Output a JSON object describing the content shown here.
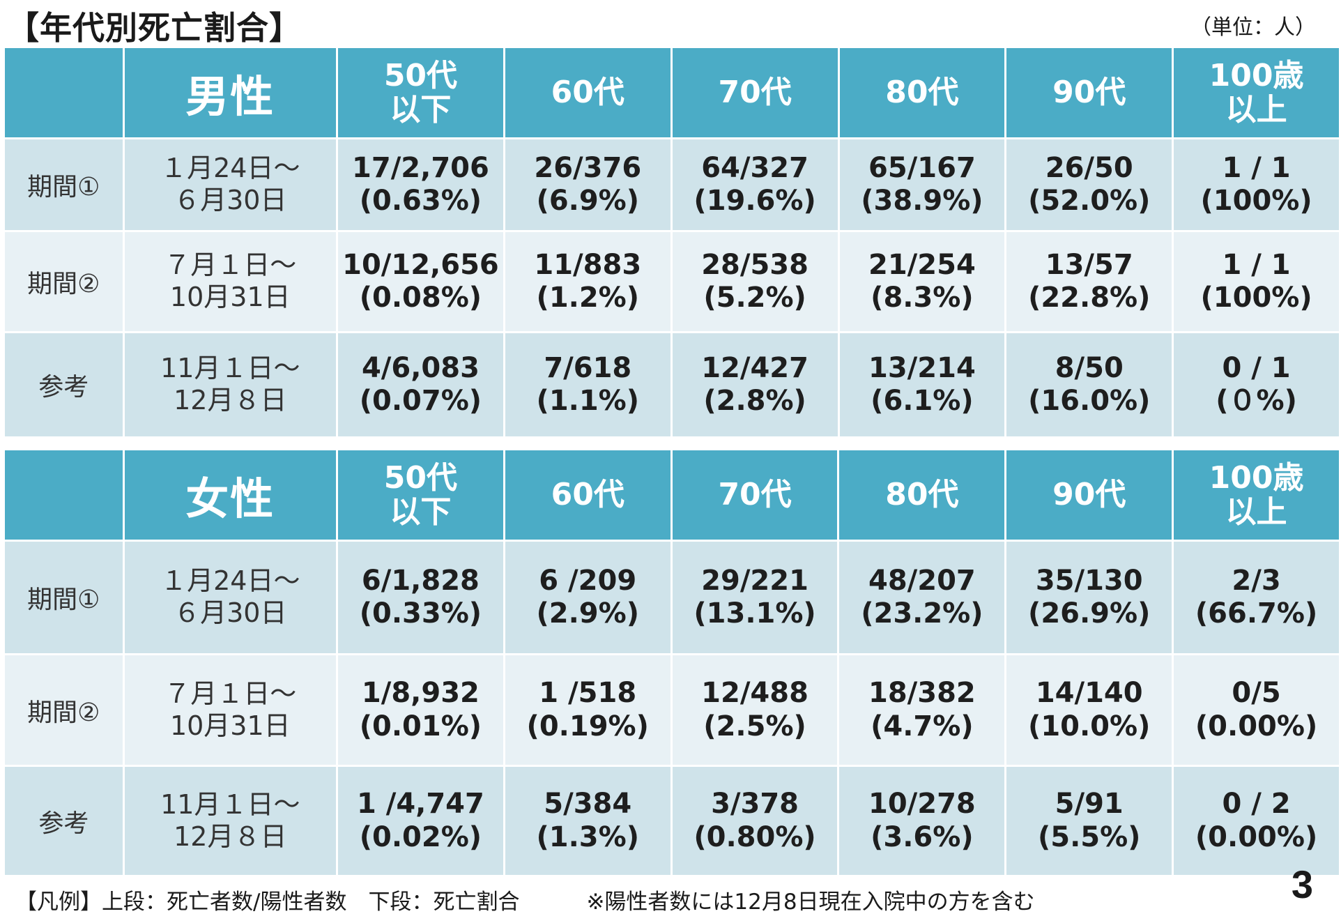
{
  "title": "【年代別死亡割合】",
  "unit": "（単位：人）",
  "age_groups": [
    "50代\n以下",
    "60代",
    "70代",
    "80代",
    "90代",
    "100歳\n以上"
  ],
  "tables": [
    {
      "sex": "男性",
      "rows": [
        {
          "period": "期間①",
          "dates": "１月24日～\n６月30日",
          "cells": [
            [
              "17/2,706",
              "(0.63%)"
            ],
            [
              "26/376",
              "(6.9%)"
            ],
            [
              "64/327",
              "(19.6%)"
            ],
            [
              "65/167",
              "(38.9%)"
            ],
            [
              "26/50",
              "(52.0%)"
            ],
            [
              "1 / 1",
              "(100%)"
            ]
          ]
        },
        {
          "period": "期間②",
          "dates": "７月１日～\n10月31日",
          "cells": [
            [
              "10/12,656",
              "(0.08%)"
            ],
            [
              "11/883",
              "(1.2%)"
            ],
            [
              "28/538",
              "(5.2%)"
            ],
            [
              "21/254",
              "(8.3%)"
            ],
            [
              "13/57",
              "(22.8%)"
            ],
            [
              "1 / 1",
              "(100%)"
            ]
          ]
        },
        {
          "period": "参考",
          "dates": "11月１日～\n12月８日",
          "cells": [
            [
              "4/6,083",
              "(0.07%)"
            ],
            [
              "7/618",
              "(1.1%)"
            ],
            [
              "12/427",
              "(2.8%)"
            ],
            [
              "13/214",
              "(6.1%)"
            ],
            [
              "8/50",
              "(16.0%)"
            ],
            [
              "0 / 1",
              "(０%)"
            ]
          ]
        }
      ]
    },
    {
      "sex": "女性",
      "rows": [
        {
          "period": "期間①",
          "dates": "１月24日～\n６月30日",
          "cells": [
            [
              "6/1,828",
              "(0.33%)"
            ],
            [
              "6 /209",
              "(2.9%)"
            ],
            [
              "29/221",
              "(13.1%)"
            ],
            [
              "48/207",
              "(23.2%)"
            ],
            [
              "35/130",
              "(26.9%)"
            ],
            [
              "2/3",
              "(66.7%)"
            ]
          ]
        },
        {
          "period": "期間②",
          "dates": "７月１日～\n10月31日",
          "cells": [
            [
              "1/8,932",
              "(0.01%)"
            ],
            [
              "1 /518",
              "(0.19%)"
            ],
            [
              "12/488",
              "(2.5%)"
            ],
            [
              "18/382",
              "(4.7%)"
            ],
            [
              "14/140",
              "(10.0%)"
            ],
            [
              "0/5",
              "(0.00%)"
            ]
          ]
        },
        {
          "period": "参考",
          "dates": "11月１日～\n12月８日",
          "cells": [
            [
              "1 /4,747",
              "(0.02%)"
            ],
            [
              "5/384",
              "(1.3%)"
            ],
            [
              "3/378",
              "(0.80%)"
            ],
            [
              "10/278",
              "(3.6%)"
            ],
            [
              "5/91",
              "(5.5%)"
            ],
            [
              "0 / 2",
              "(0.00%)"
            ]
          ]
        }
      ]
    }
  ],
  "footnote": {
    "legend": "【凡例】上段：死亡者数/陽性者数　下段：死亡割合",
    "note": "※陽性者数には12月8日現在入院中の方を含む"
  },
  "page_number": "3"
}
